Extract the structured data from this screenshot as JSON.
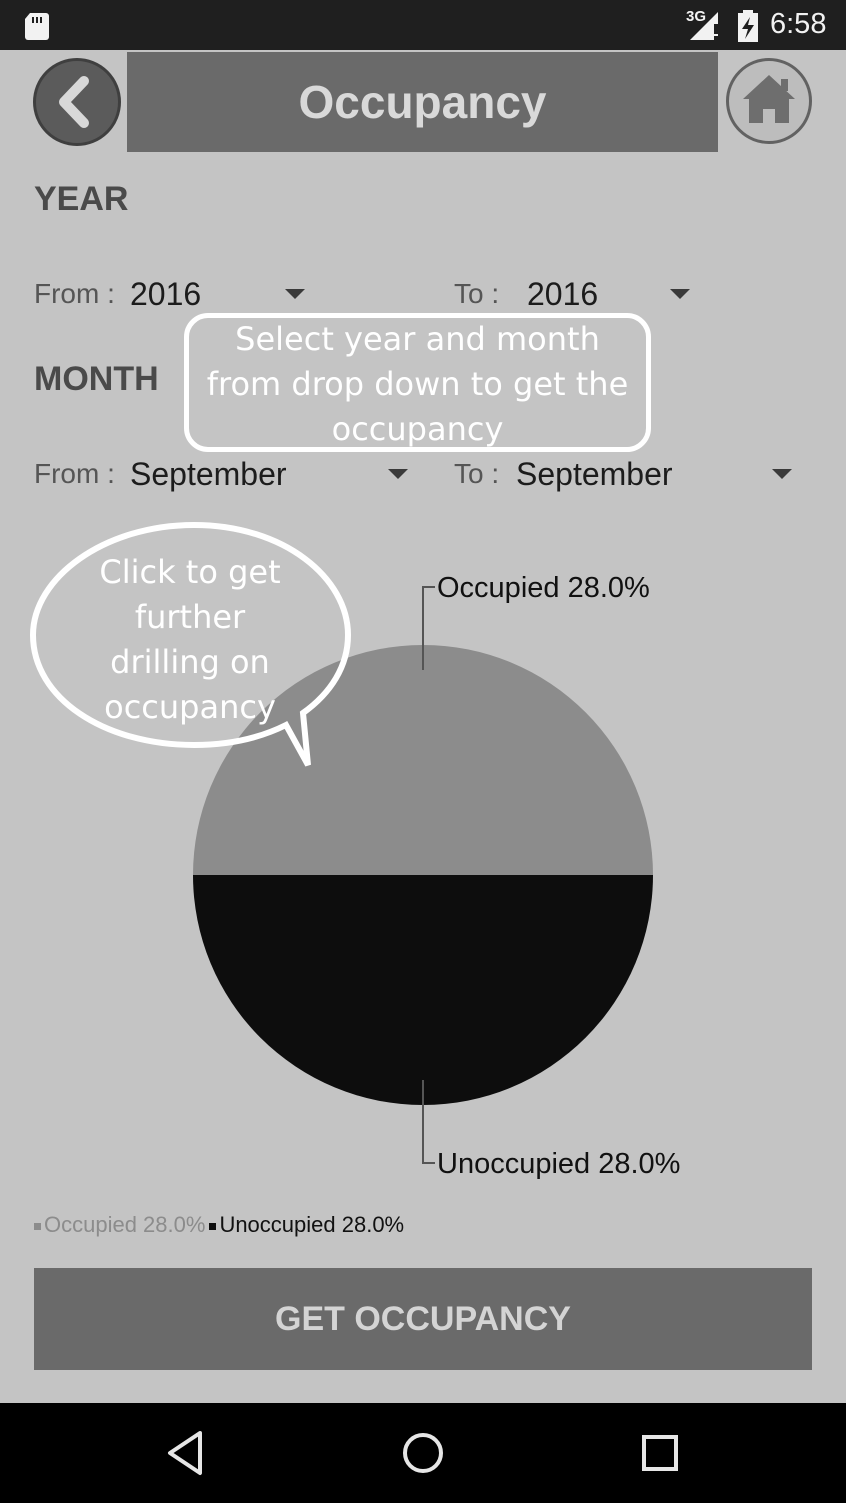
{
  "status_bar": {
    "network": "3G",
    "time": "6:58",
    "icons": [
      "sd-card-icon",
      "signal-icon",
      "battery-charging-icon"
    ]
  },
  "header": {
    "title": "Occupancy",
    "back_icon": "chevron-left-icon",
    "home_icon": "home-icon"
  },
  "year": {
    "section_label": "YEAR",
    "from_label": "From :",
    "from_value": "2016",
    "to_label": "To :",
    "to_value": "2016"
  },
  "month": {
    "section_label": "MONTH",
    "from_label": "From :",
    "from_value": "September",
    "to_label": "To :",
    "to_value": "September"
  },
  "callouts": {
    "dropdown_hint": [
      "Select year and month",
      "from drop down to get the",
      "occupancy"
    ],
    "chart_hint": [
      "Click to get",
      "further",
      "drilling on",
      "occupancy"
    ]
  },
  "chart_data": {
    "type": "pie",
    "series": [
      {
        "name": "Occupied",
        "value": 28.0,
        "label": "Occupied 28.0%",
        "color": "#8c8c8c"
      },
      {
        "name": "Unoccupied",
        "value": 28.0,
        "label": "Unoccupied 28.0%",
        "color": "#0d0d0d"
      }
    ],
    "legend": [
      "Occupied 28.0%",
      "Unoccupied 28.0%"
    ],
    "legend_placement": "bottom-left"
  },
  "actions": {
    "get_occupancy": "GET OCCUPANCY"
  },
  "nav_bar": {
    "icons": [
      "back-triangle-icon",
      "home-circle-icon",
      "recents-square-icon"
    ]
  },
  "colors": {
    "background": "#c4c4c4",
    "header": "#6a6a6a",
    "button": "#6a6a6a",
    "status_bar": "#1f1f1f",
    "nav_bar": "#000000",
    "callout": "#ffffff"
  }
}
